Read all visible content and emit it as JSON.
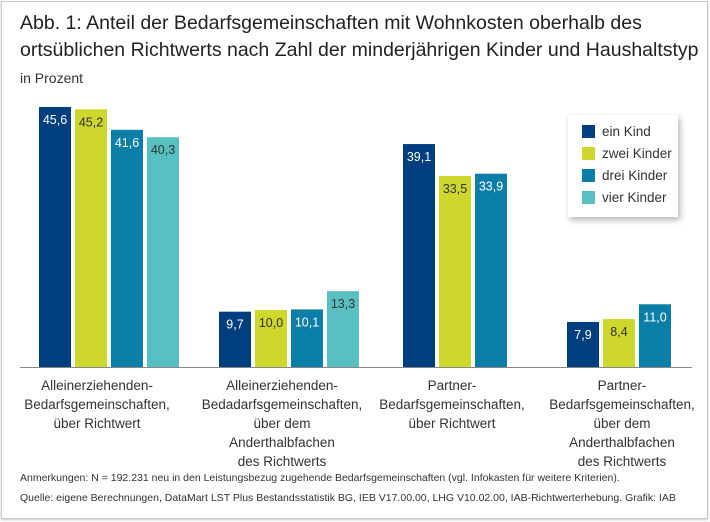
{
  "chart_data": {
    "type": "bar",
    "title": "Abb. 1: Anteil der Bedarfsgemeinschaften mit Wohnkosten oberhalb des ortsüblichen Richtwerts nach Zahl der minderjährigen Kinder und Haushaltstyp",
    "subtitle": "in Prozent",
    "categories": [
      "Alleinerziehenden-\nBedarfsgemeinschaften,\nüber Richtwert",
      "Alleinerziehenden-\nBedadarfsgemeinschaften,\nüber dem\nAnderthalbfachen\ndes Richtwerts",
      "Partner-\nBedarfsgemeinschaften,\nüber Richtwert",
      "Partner-\nBedarfsgemeinschaften,\nüber dem\nAnderthalbfachen\ndes Richtwerts"
    ],
    "series": [
      {
        "name": "ein Kind",
        "color": "#003f7f",
        "values": [
          45.6,
          9.7,
          39.1,
          7.9
        ]
      },
      {
        "name": "zwei Kinder",
        "color": "#cdd72c",
        "values": [
          45.2,
          10.0,
          33.5,
          8.4
        ]
      },
      {
        "name": "drei Kinder",
        "color": "#0b7ea8",
        "values": [
          41.6,
          10.1,
          33.9,
          11.0
        ]
      },
      {
        "name": "vier Kinder",
        "color": "#58c0c0",
        "values": [
          40.3,
          13.3,
          null,
          null
        ]
      }
    ],
    "value_labels": [
      [
        "45,6",
        "9,7",
        "39,1",
        "7,9"
      ],
      [
        "45,2",
        "10,0",
        "33,5",
        "8,4"
      ],
      [
        "41,6",
        "10,1",
        "33,9",
        "11,0"
      ],
      [
        "40,3",
        "13,3",
        "",
        ""
      ]
    ],
    "ylim": [
      0,
      46
    ],
    "legend_position": "top-right",
    "notes": [
      "Anmerkungen: N = 192.231 neu in den Leistungsbezug zugehende Bedarfsgemeinschaften (vgl. Infokasten für weitere Kriterien).",
      "Quelle: eigene Berechnungen, DataMart LST Plus Bestandsstatistik BG, IEB V17.00.00, LHG V10.02.00, IAB-Richtwerterhebung. Grafik: IAB"
    ]
  }
}
